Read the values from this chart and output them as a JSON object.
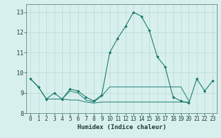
{
  "x": [
    0,
    1,
    2,
    3,
    4,
    5,
    6,
    7,
    8,
    9,
    10,
    11,
    12,
    13,
    14,
    15,
    16,
    17,
    18,
    19,
    20,
    21,
    22,
    23
  ],
  "y_main": [
    9.7,
    9.3,
    8.7,
    9.0,
    8.7,
    9.2,
    9.1,
    8.8,
    8.6,
    8.9,
    11.0,
    11.7,
    12.3,
    13.0,
    12.8,
    12.1,
    10.8,
    10.3,
    8.8,
    8.6,
    8.5,
    9.7,
    9.1,
    9.6
  ],
  "y_lower1": [
    9.7,
    9.3,
    8.7,
    8.7,
    8.7,
    9.1,
    9.0,
    8.65,
    8.55,
    8.85,
    9.3,
    9.3,
    9.3,
    9.3,
    9.3,
    9.3,
    9.3,
    9.3,
    9.3,
    9.3,
    8.6,
    null,
    null,
    null
  ],
  "y_lower2": [
    null,
    null,
    8.7,
    8.7,
    8.7,
    8.65,
    8.65,
    8.55,
    8.5,
    8.55,
    8.55,
    8.55,
    8.55,
    8.55,
    8.55,
    8.55,
    8.55,
    8.55,
    8.55,
    8.55,
    8.55,
    null,
    null,
    null
  ],
  "line_color": "#1a7a6e",
  "bg_color": "#d8f0ed",
  "grid_color": "#b8d8d4",
  "xlabel": "Humidex (Indice chaleur)",
  "ylim": [
    8.0,
    13.4
  ],
  "xlim": [
    -0.5,
    23.5
  ],
  "yticks": [
    8,
    9,
    10,
    11,
    12,
    13
  ],
  "xticks": [
    0,
    1,
    2,
    3,
    4,
    5,
    6,
    7,
    8,
    9,
    10,
    11,
    12,
    13,
    14,
    15,
    16,
    17,
    18,
    19,
    20,
    21,
    22,
    23
  ]
}
